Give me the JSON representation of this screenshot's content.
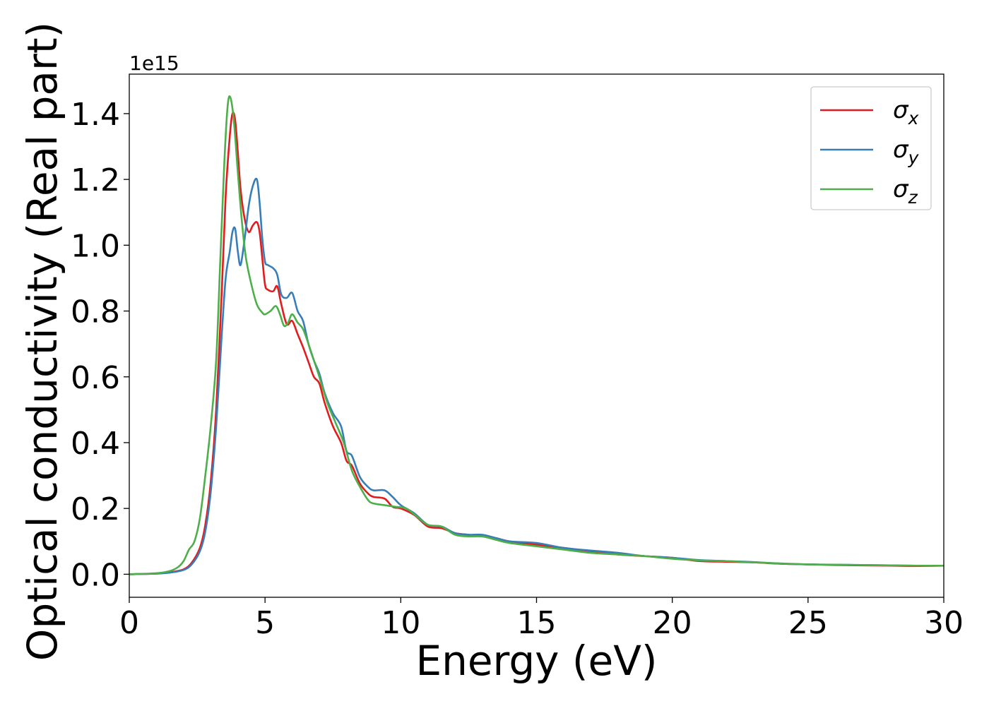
{
  "chart_data": {
    "type": "line",
    "xlabel": "Energy (eV)",
    "ylabel": "Optical conductivity (Real part)",
    "y_offset_label": "1e15",
    "xlim": [
      0,
      30
    ],
    "ylim": [
      -0.07,
      1.52
    ],
    "y_scale_factor": 1000000000000000.0,
    "x_ticks": [
      0,
      5,
      10,
      15,
      20,
      25,
      30
    ],
    "x_tick_labels": [
      "0",
      "5",
      "10",
      "15",
      "20",
      "25",
      "30"
    ],
    "y_ticks": [
      0.0,
      0.2,
      0.4,
      0.6,
      0.8,
      1.0,
      1.2,
      1.4
    ],
    "y_tick_labels": [
      "0.0",
      "0.2",
      "0.4",
      "0.6",
      "0.8",
      "1.0",
      "1.2",
      "1.4"
    ],
    "grid": false,
    "legend_position": "top-right",
    "series": [
      {
        "name": "σx",
        "legend_symbol": "σ",
        "legend_sub": "x",
        "color": "#e41a1c",
        "x": [
          0,
          1,
          1.5,
          2,
          2.3,
          2.6,
          2.8,
          3.0,
          3.2,
          3.4,
          3.55,
          3.7,
          3.8,
          3.9,
          4.0,
          4.1,
          4.25,
          4.4,
          4.55,
          4.7,
          4.8,
          4.9,
          5.0,
          5.1,
          5.3,
          5.45,
          5.6,
          5.8,
          6.0,
          6.2,
          6.4,
          6.6,
          6.8,
          7.0,
          7.2,
          7.5,
          7.8,
          8.0,
          8.2,
          8.5,
          8.8,
          9.0,
          9.4,
          9.7,
          10.0,
          10.5,
          11.0,
          11.5,
          12.0,
          12.5,
          13.0,
          13.5,
          14.0,
          15.0,
          16.0,
          17.0,
          18.0,
          19.0,
          20.0,
          21.0,
          22.0,
          23.0,
          24.0,
          25.0,
          26.0,
          27.0,
          28.0,
          29.0,
          30.0
        ],
        "y": [
          0.0,
          0.002,
          0.006,
          0.015,
          0.035,
          0.08,
          0.15,
          0.28,
          0.5,
          0.85,
          1.15,
          1.33,
          1.4,
          1.38,
          1.28,
          1.17,
          1.08,
          1.04,
          1.06,
          1.07,
          1.04,
          0.96,
          0.88,
          0.865,
          0.86,
          0.875,
          0.82,
          0.76,
          0.77,
          0.73,
          0.69,
          0.645,
          0.6,
          0.58,
          0.52,
          0.45,
          0.4,
          0.345,
          0.33,
          0.275,
          0.245,
          0.235,
          0.23,
          0.205,
          0.2,
          0.18,
          0.145,
          0.14,
          0.125,
          0.12,
          0.115,
          0.11,
          0.1,
          0.09,
          0.08,
          0.07,
          0.06,
          0.055,
          0.05,
          0.04,
          0.038,
          0.036,
          0.032,
          0.03,
          0.028,
          0.027,
          0.026,
          0.025,
          0.026
        ]
      },
      {
        "name": "σy",
        "legend_symbol": "σ",
        "legend_sub": "y",
        "color": "#377eb8",
        "x": [
          0,
          1,
          1.5,
          2,
          2.3,
          2.6,
          2.8,
          3.0,
          3.2,
          3.4,
          3.55,
          3.7,
          3.8,
          3.9,
          4.0,
          4.1,
          4.25,
          4.4,
          4.55,
          4.7,
          4.8,
          4.9,
          5.0,
          5.1,
          5.3,
          5.45,
          5.6,
          5.8,
          6.0,
          6.2,
          6.4,
          6.6,
          6.8,
          7.0,
          7.2,
          7.5,
          7.8,
          8.0,
          8.2,
          8.5,
          8.8,
          9.0,
          9.4,
          9.7,
          10.0,
          10.5,
          11.0,
          11.5,
          12.0,
          12.5,
          13.0,
          13.5,
          14.0,
          15.0,
          16.0,
          17.0,
          18.0,
          19.0,
          20.0,
          21.0,
          22.0,
          23.0,
          24.0,
          25.0,
          26.0,
          27.0,
          28.0,
          29.0,
          30.0
        ],
        "y": [
          0.0,
          0.002,
          0.005,
          0.013,
          0.03,
          0.07,
          0.13,
          0.25,
          0.45,
          0.72,
          0.9,
          0.98,
          1.04,
          1.05,
          0.98,
          0.94,
          1.02,
          1.12,
          1.18,
          1.2,
          1.13,
          1.02,
          0.95,
          0.94,
          0.93,
          0.91,
          0.85,
          0.84,
          0.855,
          0.8,
          0.77,
          0.7,
          0.65,
          0.61,
          0.55,
          0.49,
          0.45,
          0.375,
          0.36,
          0.295,
          0.265,
          0.255,
          0.255,
          0.235,
          0.21,
          0.185,
          0.15,
          0.145,
          0.125,
          0.12,
          0.12,
          0.11,
          0.1,
          0.095,
          0.08,
          0.072,
          0.065,
          0.055,
          0.05,
          0.043,
          0.04,
          0.037,
          0.032,
          0.03,
          0.029,
          0.028,
          0.027,
          0.026,
          0.026
        ]
      },
      {
        "name": "σz",
        "legend_symbol": "σ",
        "legend_sub": "z",
        "color": "#4daf4a",
        "x": [
          0,
          1,
          1.5,
          1.8,
          2.0,
          2.2,
          2.4,
          2.6,
          2.8,
          3.0,
          3.2,
          3.35,
          3.5,
          3.62,
          3.72,
          3.85,
          4.0,
          4.15,
          4.3,
          4.5,
          4.7,
          4.9,
          5.0,
          5.2,
          5.4,
          5.55,
          5.7,
          5.85,
          6.0,
          6.2,
          6.4,
          6.6,
          6.8,
          7.0,
          7.3,
          7.6,
          7.9,
          8.2,
          8.5,
          8.8,
          9.0,
          9.4,
          9.8,
          10.2,
          10.6,
          11.0,
          11.5,
          12.0,
          12.5,
          13.0,
          13.5,
          14.0,
          15.0,
          16.0,
          17.0,
          18.0,
          19.0,
          20.0,
          21.0,
          22.0,
          23.0,
          24.0,
          25.0,
          26.0,
          27.0,
          28.0,
          29.0,
          30.0
        ],
        "y": [
          0.0,
          0.003,
          0.01,
          0.022,
          0.04,
          0.075,
          0.1,
          0.17,
          0.3,
          0.45,
          0.65,
          0.95,
          1.25,
          1.42,
          1.45,
          1.38,
          1.22,
          1.07,
          0.96,
          0.88,
          0.82,
          0.795,
          0.79,
          0.8,
          0.815,
          0.79,
          0.755,
          0.765,
          0.79,
          0.765,
          0.745,
          0.7,
          0.65,
          0.6,
          0.52,
          0.46,
          0.4,
          0.315,
          0.265,
          0.225,
          0.215,
          0.21,
          0.205,
          0.2,
          0.175,
          0.15,
          0.145,
          0.12,
          0.115,
          0.115,
          0.105,
          0.095,
          0.085,
          0.075,
          0.065,
          0.06,
          0.055,
          0.047,
          0.042,
          0.04,
          0.036,
          0.033,
          0.03,
          0.029,
          0.028,
          0.027,
          0.026,
          0.026
        ]
      }
    ]
  }
}
